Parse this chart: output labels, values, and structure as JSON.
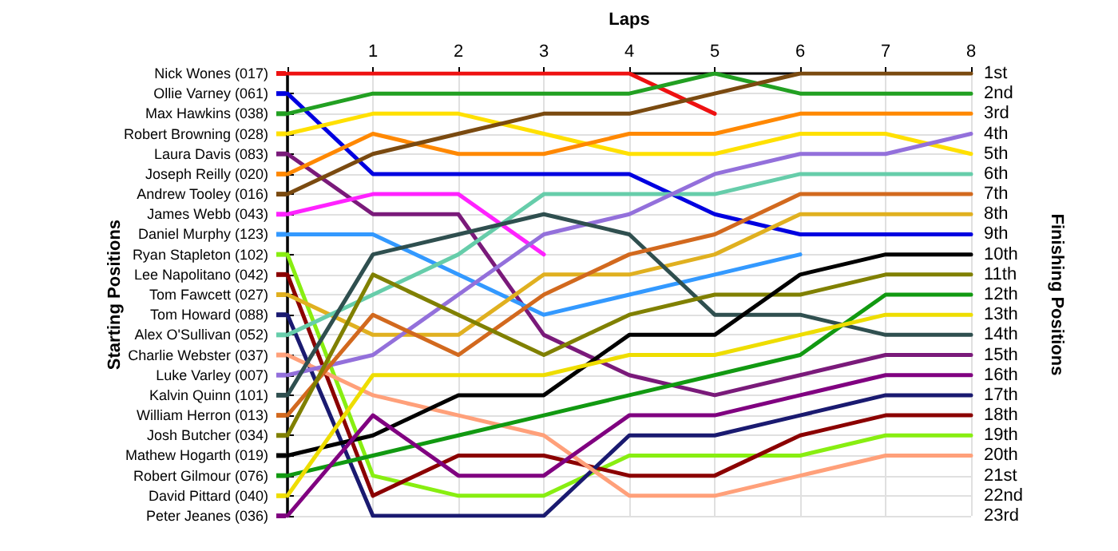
{
  "chart_data": {
    "type": "line",
    "xlabel": "Laps",
    "legend_title": "Starting Positions",
    "y2label": "Finishing Positions",
    "x": [
      0,
      1,
      2,
      3,
      4,
      5,
      6,
      7,
      8
    ],
    "xlim": [
      0,
      8
    ],
    "xticks": [
      {
        "value": 0,
        "label": null
      },
      1,
      2,
      3,
      4,
      5,
      6,
      7,
      8
    ],
    "ylim": [
      23,
      1
    ],
    "yticks": [
      {
        "value": 1,
        "label": "1st"
      },
      {
        "value": 2,
        "label": "2nd"
      },
      {
        "value": 3,
        "label": "3rd"
      },
      {
        "value": 4,
        "label": "4th"
      },
      {
        "value": 5,
        "label": "5th"
      },
      {
        "value": 6,
        "label": "6th"
      },
      {
        "value": 7,
        "label": "7th"
      },
      {
        "value": 8,
        "label": "8th"
      },
      {
        "value": 9,
        "label": "9th"
      },
      {
        "value": 10,
        "label": "10th"
      },
      {
        "value": 11,
        "label": "11th"
      },
      {
        "value": 12,
        "label": "12th"
      },
      {
        "value": 13,
        "label": "13th"
      },
      {
        "value": 14,
        "label": "14th"
      },
      {
        "value": 15,
        "label": "15th"
      },
      {
        "value": 16,
        "label": "16th"
      },
      {
        "value": 17,
        "label": "17th"
      },
      {
        "value": 18,
        "label": "18th"
      },
      {
        "value": 19,
        "label": "19th"
      },
      {
        "value": 20,
        "label": "20th"
      },
      {
        "value": 21,
        "label": "21st"
      },
      {
        "value": 22,
        "label": "22nd"
      },
      {
        "value": 23,
        "label": "23rd"
      }
    ],
    "grid": true,
    "legend": "left",
    "marker": "none",
    "line_style": "solid",
    "series": [
      {
        "name": "Nick Wones (017)",
        "color": "#ee1111",
        "values": [
          1,
          1,
          1,
          1,
          1,
          3,
          null,
          null,
          null
        ]
      },
      {
        "name": "Ollie Varney (061)",
        "color": "#0000e0",
        "values": [
          2,
          6,
          6,
          6,
          6,
          8,
          9,
          9,
          9
        ]
      },
      {
        "name": "Max Hawkins (038)",
        "color": "#22a022",
        "values": [
          3,
          2,
          2,
          2,
          2,
          1,
          2,
          2,
          2
        ]
      },
      {
        "name": "Robert Browning (028)",
        "color": "#ffe000",
        "values": [
          4,
          3,
          3,
          4,
          5,
          5,
          4,
          4,
          5
        ]
      },
      {
        "name": "Laura Davis (083)",
        "color": "#7a1a7a",
        "values": [
          5,
          8,
          8,
          14,
          16,
          17,
          16,
          15,
          15
        ]
      },
      {
        "name": "Joseph Reilly (020)",
        "color": "#ff8800",
        "values": [
          6,
          4,
          5,
          5,
          4,
          4,
          3,
          3,
          3
        ]
      },
      {
        "name": "Andrew Tooley (016)",
        "color": "#7a4a10",
        "values": [
          7,
          5,
          4,
          3,
          3,
          2,
          1,
          1,
          1
        ]
      },
      {
        "name": "James Webb (043)",
        "color": "#ff22ff",
        "values": [
          8,
          7,
          7,
          10,
          null,
          null,
          null,
          null,
          null
        ]
      },
      {
        "name": "Daniel Murphy (123)",
        "color": "#3399ff",
        "values": [
          9,
          9,
          11,
          13,
          12,
          11,
          10,
          null,
          null
        ]
      },
      {
        "name": "Ryan Stapleton (102)",
        "color": "#88ee11",
        "values": [
          10,
          21,
          22,
          22,
          20,
          20,
          20,
          19,
          19
        ]
      },
      {
        "name": "Lee Napolitano (042)",
        "color": "#8b0000",
        "values": [
          11,
          22,
          20,
          20,
          21,
          21,
          19,
          18,
          18
        ]
      },
      {
        "name": "Tom Fawcett (027)",
        "color": "#e0b020",
        "values": [
          12,
          14,
          14,
          11,
          11,
          10,
          8,
          8,
          8
        ]
      },
      {
        "name": "Tom Howard (088)",
        "color": "#1a1a70",
        "values": [
          13,
          23,
          23,
          23,
          19,
          19,
          18,
          17,
          17
        ]
      },
      {
        "name": "Alex O'Sullivan (052)",
        "color": "#66cdaa",
        "values": [
          14,
          12,
          10,
          7,
          7,
          7,
          6,
          6,
          6
        ]
      },
      {
        "name": "Charlie Webster (037)",
        "color": "#ffa07a",
        "values": [
          15,
          17,
          18,
          19,
          22,
          22,
          21,
          20,
          20
        ]
      },
      {
        "name": "Luke Varley (007)",
        "color": "#9370db",
        "values": [
          16,
          15,
          12,
          9,
          8,
          6,
          5,
          5,
          4
        ]
      },
      {
        "name": "Kalvin Quinn (101)",
        "color": "#2f4f4f",
        "values": [
          17,
          10,
          9,
          8,
          9,
          13,
          13,
          14,
          14
        ]
      },
      {
        "name": "William Herron (013)",
        "color": "#d2691e",
        "values": [
          18,
          13,
          15,
          12,
          10,
          9,
          7,
          7,
          7
        ]
      },
      {
        "name": "Josh Butcher (034)",
        "color": "#808000",
        "values": [
          19,
          11,
          13,
          15,
          13,
          12,
          12,
          11,
          11
        ]
      },
      {
        "name": "Mathew Hogarth (019)",
        "color": "#000000",
        "values": [
          20,
          19,
          17,
          17,
          14,
          14,
          11,
          10,
          10
        ]
      },
      {
        "name": "Robert Gilmour (076)",
        "color": "#119911",
        "values": [
          21,
          20,
          19,
          18,
          17,
          16,
          15,
          12,
          12
        ]
      },
      {
        "name": "David Pittard (040)",
        "color": "#eedd00",
        "values": [
          22,
          16,
          16,
          16,
          15,
          15,
          14,
          13,
          13
        ]
      },
      {
        "name": "Peter Jeanes (036)",
        "color": "#800080",
        "values": [
          23,
          18,
          21,
          21,
          18,
          18,
          17,
          16,
          16
        ]
      }
    ]
  }
}
